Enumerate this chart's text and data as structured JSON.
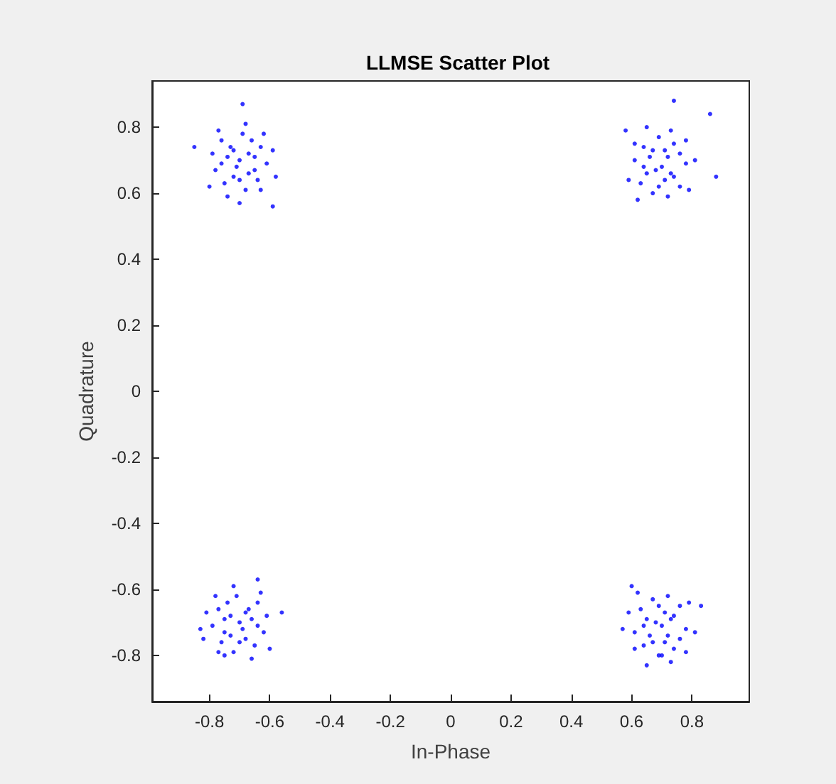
{
  "chart_data": {
    "type": "scatter",
    "title": "LLMSE Scatter Plot",
    "xlabel": "In-Phase",
    "ylabel": "Quadrature",
    "xlim": [
      -0.99,
      0.99
    ],
    "ylim": [
      -0.94,
      0.94
    ],
    "xticks": [
      -0.8,
      -0.6,
      -0.4,
      -0.2,
      0,
      0.2,
      0.4,
      0.6,
      0.8
    ],
    "yticks": [
      -0.8,
      -0.6,
      -0.4,
      -0.2,
      0,
      0.2,
      0.4,
      0.6,
      0.8
    ],
    "grid": false,
    "marker": "circle",
    "series": [
      {
        "color": "#0000ff",
        "x": [
          -0.7,
          -0.67,
          -0.74,
          -0.65,
          -0.72,
          -0.63,
          -0.76,
          -0.69,
          -0.61,
          -0.78,
          -0.68,
          -0.73,
          -0.66,
          -0.75,
          -0.64,
          -0.79,
          -0.59,
          -0.71,
          -0.68,
          -0.77,
          -0.62,
          -0.8,
          -0.65,
          -0.72,
          -0.67,
          -0.58,
          -0.74,
          -0.7,
          -0.76,
          -0.63,
          -0.85,
          -0.69,
          -0.59,
          -0.7,
          0.7,
          0.72,
          0.71,
          0.67,
          0.65,
          0.74,
          0.76,
          0.78,
          0.69,
          0.67,
          0.61,
          0.74,
          0.76,
          0.63,
          0.64,
          0.72,
          0.73,
          0.68,
          0.81,
          0.79,
          0.78,
          0.62,
          0.71,
          0.73,
          0.66,
          0.65,
          0.59,
          0.64,
          0.69,
          0.61,
          0.74,
          0.86,
          0.88,
          0.58,
          -0.7,
          -0.73,
          -0.66,
          -0.75,
          -0.68,
          -0.77,
          -0.64,
          -0.71,
          -0.79,
          -0.62,
          -0.72,
          -0.67,
          -0.74,
          -0.65,
          -0.76,
          -0.61,
          -0.81,
          -0.69,
          -0.72,
          -0.63,
          -0.78,
          -0.6,
          -0.75,
          -0.68,
          -0.73,
          -0.82,
          -0.66,
          -0.7,
          -0.64,
          -0.77,
          -0.64,
          -0.83,
          -0.75,
          -0.56,
          0.7,
          0.72,
          0.71,
          0.67,
          0.65,
          0.74,
          0.76,
          0.78,
          0.69,
          0.67,
          0.61,
          0.74,
          0.76,
          0.63,
          0.64,
          0.72,
          0.73,
          0.68,
          0.81,
          0.79,
          0.78,
          0.62,
          0.71,
          0.73,
          0.66,
          0.65,
          0.59,
          0.64,
          0.69,
          0.61,
          0.6,
          0.83,
          0.57,
          0.7
        ],
        "values": [
          0.7,
          0.72,
          0.71,
          0.67,
          0.65,
          0.74,
          0.76,
          0.78,
          0.69,
          0.67,
          0.61,
          0.74,
          0.76,
          0.63,
          0.64,
          0.72,
          0.73,
          0.68,
          0.81,
          0.79,
          0.78,
          0.62,
          0.71,
          0.73,
          0.66,
          0.65,
          0.59,
          0.64,
          0.69,
          0.61,
          0.74,
          0.87,
          0.56,
          0.57,
          0.68,
          0.71,
          0.64,
          0.73,
          0.66,
          0.75,
          0.62,
          0.69,
          0.77,
          0.6,
          0.7,
          0.65,
          0.72,
          0.63,
          0.74,
          0.59,
          0.79,
          0.67,
          0.7,
          0.61,
          0.76,
          0.58,
          0.73,
          0.66,
          0.71,
          0.8,
          0.64,
          0.68,
          0.62,
          0.75,
          0.88,
          0.84,
          0.65,
          0.79,
          -0.7,
          -0.68,
          -0.69,
          -0.73,
          -0.75,
          -0.66,
          -0.64,
          -0.62,
          -0.71,
          -0.73,
          -0.79,
          -0.66,
          -0.64,
          -0.77,
          -0.76,
          -0.68,
          -0.67,
          -0.72,
          -0.59,
          -0.61,
          -0.62,
          -0.78,
          -0.69,
          -0.67,
          -0.74,
          -0.75,
          -0.81,
          -0.76,
          -0.71,
          -0.79,
          -0.57,
          -0.72,
          -0.8,
          -0.67,
          -0.71,
          -0.74,
          -0.67,
          -0.76,
          -0.69,
          -0.78,
          -0.65,
          -0.72,
          -0.8,
          -0.63,
          -0.73,
          -0.68,
          -0.75,
          -0.66,
          -0.77,
          -0.62,
          -0.82,
          -0.7,
          -0.73,
          -0.64,
          -0.79,
          -0.61,
          -0.76,
          -0.69,
          -0.74,
          -0.83,
          -0.67,
          -0.71,
          -0.65,
          -0.78,
          -0.59,
          -0.65,
          -0.72,
          -0.8
        ]
      }
    ]
  }
}
